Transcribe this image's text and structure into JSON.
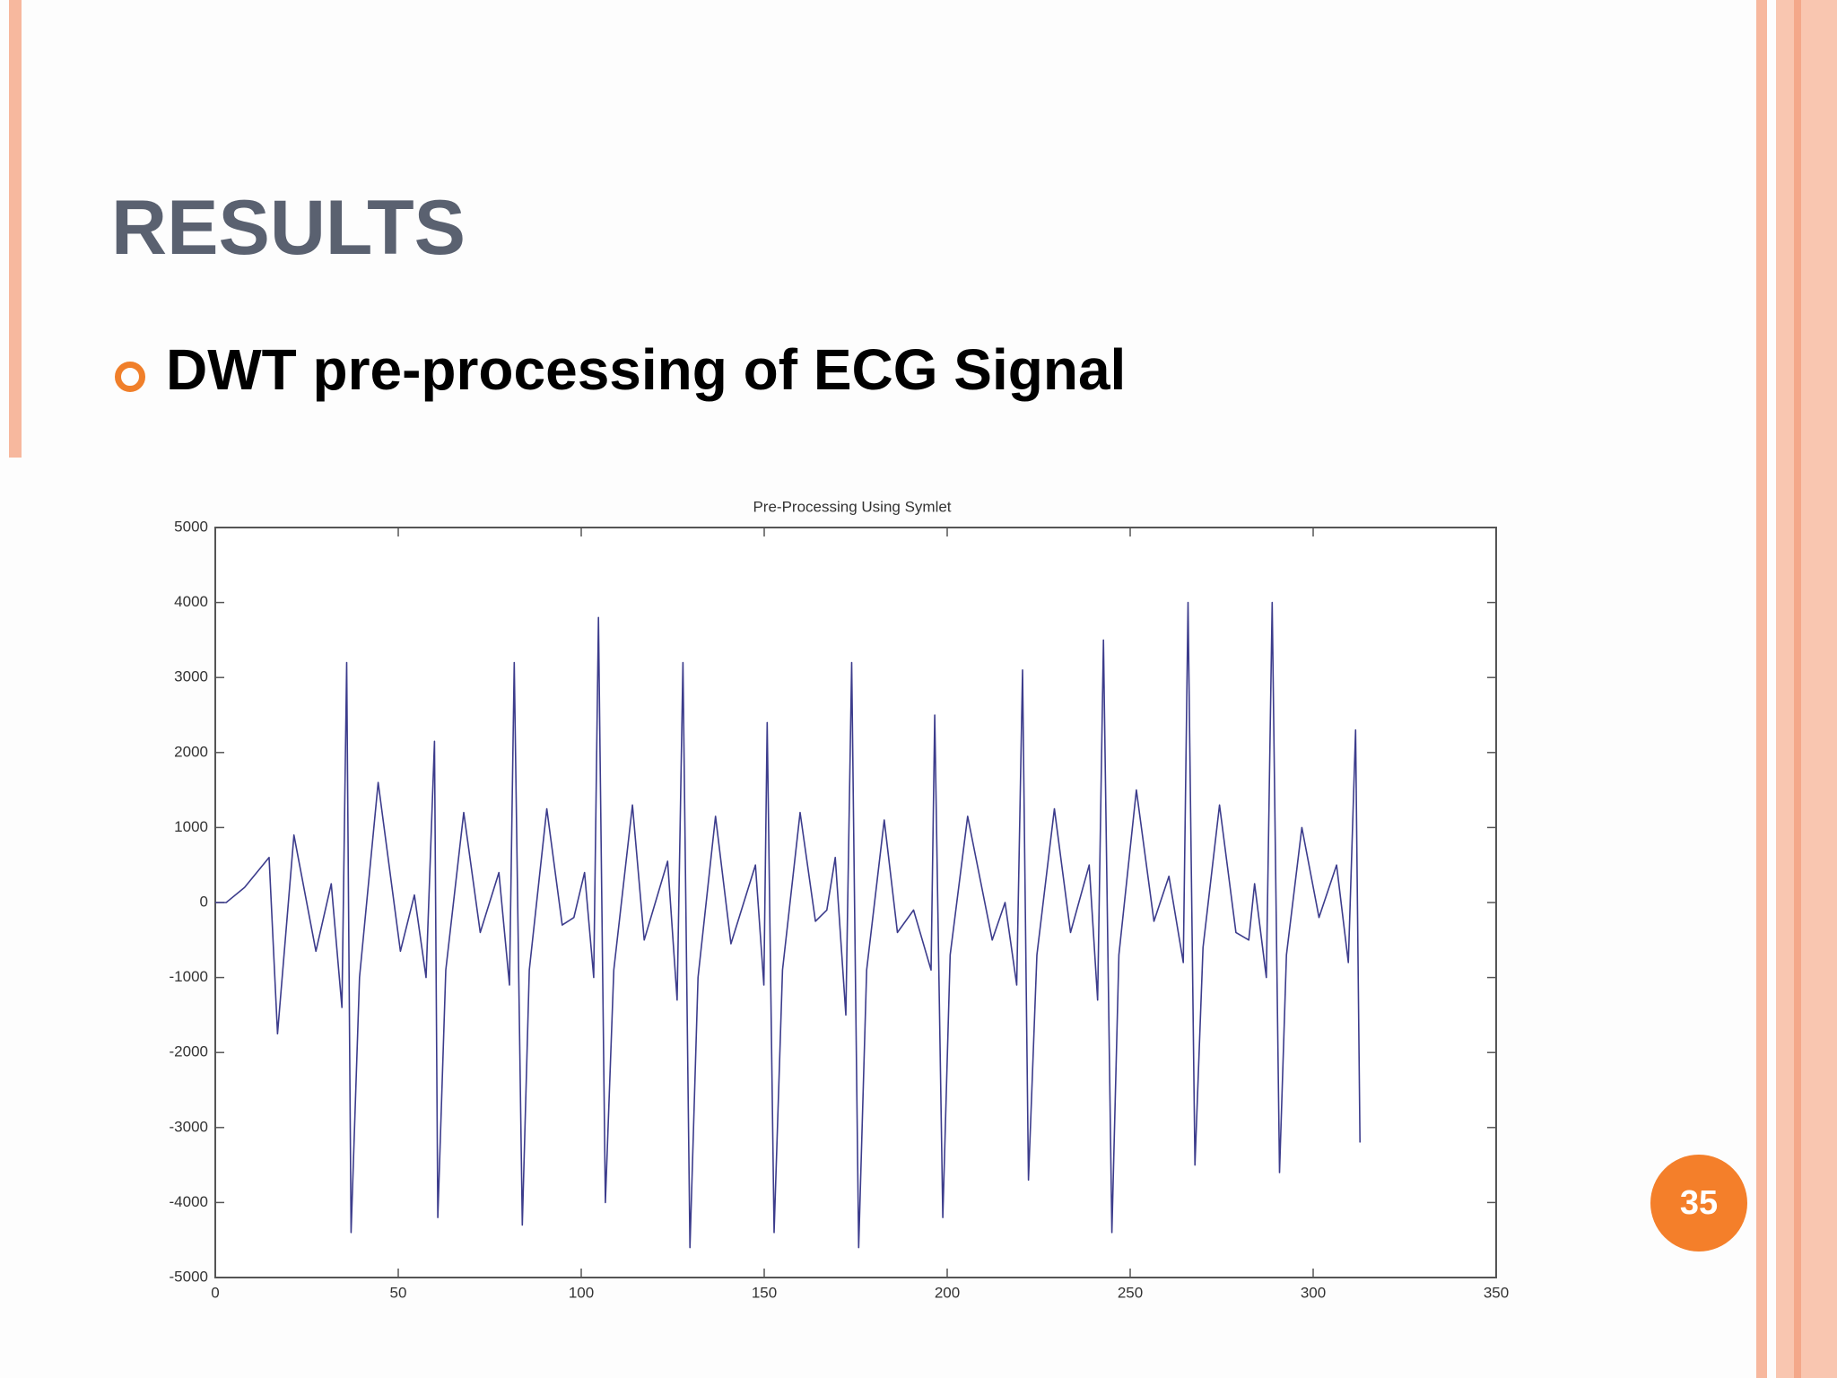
{
  "header": {
    "title": "RESULTS"
  },
  "bullet": "DWT pre-processing of ECG Signal",
  "page_number": "35",
  "chart_data": {
    "type": "line",
    "title": "Pre-Processing Using Symlet",
    "x": [
      0,
      3,
      8,
      14.7,
      17,
      21.5,
      27.5,
      31.7,
      34.6,
      35.9,
      37.1,
      39.4,
      44.5,
      50.6,
      54.4,
      57.6,
      59.9,
      60.8,
      63,
      67.9,
      72.4,
      77.5,
      80.4,
      81.7,
      83.9,
      85.8,
      90.6,
      94.8,
      98,
      100.9,
      103.4,
      104.7,
      106.6,
      108.9,
      114,
      117.2,
      123.6,
      126.2,
      127.8,
      129.7,
      131.9,
      136.7,
      140.9,
      147.6,
      149.9,
      150.8,
      152.7,
      155,
      159.8,
      164,
      167.1,
      169.4,
      172.3,
      173.9,
      175.8,
      178,
      182.8,
      186.4,
      190.8,
      195.6,
      196.6,
      198.8,
      200.8,
      205.6,
      212.3,
      215.8,
      219,
      220.6,
      222.2,
      224.5,
      229.3,
      233.7,
      238.8,
      241.1,
      242.7,
      245,
      246.9,
      251.7,
      256.5,
      260.6,
      264.5,
      265.8,
      267.7,
      269.9,
      274.4,
      278.9,
      282.4,
      284,
      287.2,
      288.8,
      290.8,
      292.7,
      296.9,
      301.6,
      306.4,
      309.6,
      311.6,
      312.8
    ],
    "series": [
      {
        "name": "ECG",
        "color": "#3c3c8c",
        "values": [
          0,
          0,
          200,
          600,
          -1750,
          900,
          -650,
          250,
          -1400,
          3200,
          -4400,
          -1000,
          1600,
          -650,
          100,
          -1000,
          2150,
          -4200,
          -900,
          1200,
          -400,
          400,
          -1100,
          3200,
          -4300,
          -900,
          1250,
          -300,
          -200,
          400,
          -1000,
          3800,
          -4000,
          -900,
          1300,
          -500,
          550,
          -1300,
          3200,
          -4600,
          -1000,
          1150,
          -550,
          500,
          -1100,
          2400,
          -4400,
          -900,
          1200,
          -250,
          -100,
          600,
          -1500,
          3200,
          -4600,
          -900,
          1100,
          -400,
          -100,
          -900,
          2500,
          -4200,
          -700,
          1150,
          -500,
          0,
          -1100,
          3100,
          -3700,
          -700,
          1250,
          -400,
          500,
          -1300,
          3500,
          -4400,
          -700,
          1500,
          -250,
          350,
          -800,
          4000,
          -3500,
          -600,
          1300,
          -400,
          -500,
          250,
          -1000,
          4000,
          -3600,
          -700,
          1000,
          -200,
          500,
          -800,
          2300,
          -3200
        ]
      }
    ],
    "xlim": [
      0,
      350
    ],
    "xticks": [
      0,
      50,
      100,
      150,
      200,
      250,
      300,
      350
    ],
    "ylim": [
      -5000,
      5000
    ],
    "yticks": [
      -5000,
      -4000,
      -3000,
      -2000,
      -1000,
      0,
      1000,
      2000,
      3000,
      4000,
      5000
    ]
  }
}
